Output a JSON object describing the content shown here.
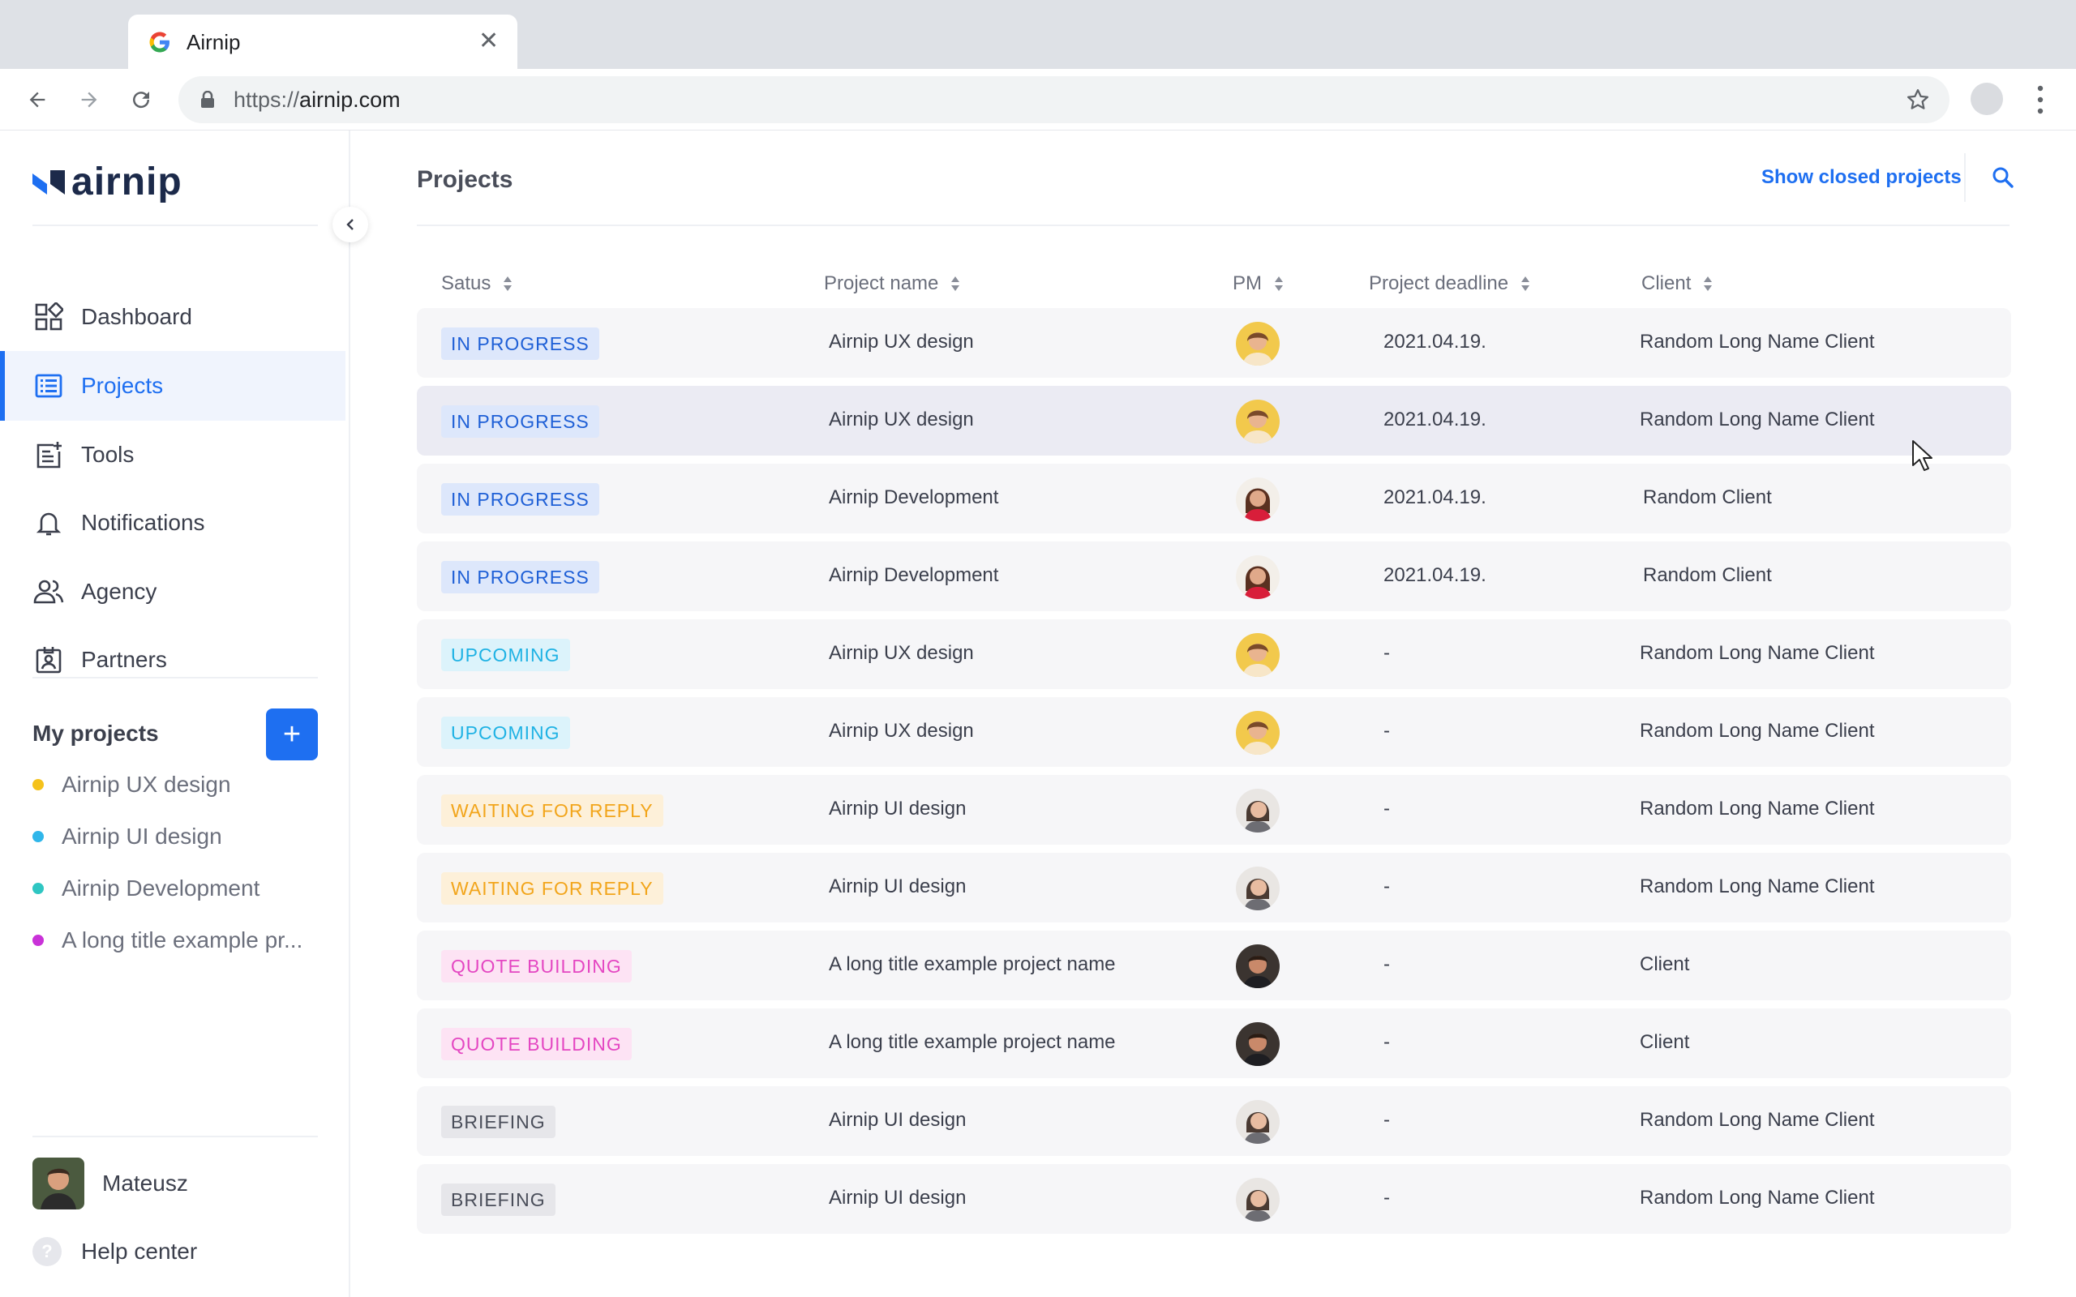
{
  "browser": {
    "tab_title": "Airnip",
    "url_proto": "https://",
    "url_host": "airnip.com"
  },
  "sidebar": {
    "logo_text": "airnip",
    "nav": [
      {
        "label": "Dashboard",
        "icon": "dashboard-icon",
        "active": false
      },
      {
        "label": "Projects",
        "icon": "list-icon",
        "active": true
      },
      {
        "label": "Tools",
        "icon": "tools-icon",
        "active": false
      },
      {
        "label": "Notifications",
        "icon": "bell-icon",
        "active": false
      },
      {
        "label": "Agency",
        "icon": "people-icon",
        "active": false
      },
      {
        "label": "Partners",
        "icon": "badge-icon",
        "active": false
      }
    ],
    "my_projects_title": "My projects",
    "add_label": "+",
    "my_projects": [
      {
        "label": "Airnip UX design",
        "color": "#f5c21b"
      },
      {
        "label": "Airnip UI design",
        "color": "#2fb6ea"
      },
      {
        "label": "Airnip Development",
        "color": "#2fc6c2"
      },
      {
        "label": "A long title example pr...",
        "color": "#c932d8"
      }
    ],
    "user_name": "Mateusz",
    "help_label": "Help center",
    "help_icon": "?"
  },
  "main": {
    "title": "Projects",
    "show_closed": "Show closed projects",
    "columns": [
      "Satus",
      "Project name",
      "PM",
      "Project deadline",
      "Client"
    ],
    "rows": [
      {
        "status": "IN PROGRESS",
        "status_key": "progress",
        "name": "Airnip UX design",
        "pm": "a",
        "deadline": "2021.04.19.",
        "client": "Random Long Name Client"
      },
      {
        "status": "IN PROGRESS",
        "status_key": "progress",
        "name": "Airnip UX design",
        "pm": "a",
        "deadline": "2021.04.19.",
        "client": "Random Long Name Client"
      },
      {
        "status": "IN PROGRESS",
        "status_key": "progress",
        "name": "Airnip Development",
        "pm": "b",
        "deadline": "2021.04.19.",
        "client": "Random Client"
      },
      {
        "status": "IN PROGRESS",
        "status_key": "progress",
        "name": "Airnip Development",
        "pm": "b",
        "deadline": "2021.04.19.",
        "client": "Random Client"
      },
      {
        "status": "UPCOMING",
        "status_key": "upcoming",
        "name": "Airnip UX design",
        "pm": "a",
        "deadline": "-",
        "client": "Random Long Name Client"
      },
      {
        "status": "UPCOMING",
        "status_key": "upcoming",
        "name": "Airnip UX design",
        "pm": "a",
        "deadline": "-",
        "client": "Random Long Name Client"
      },
      {
        "status": "WAITING FOR REPLY",
        "status_key": "waiting",
        "name": "Airnip UI design",
        "pm": "c",
        "deadline": "-",
        "client": "Random Long Name Client"
      },
      {
        "status": "WAITING FOR REPLY",
        "status_key": "waiting",
        "name": "Airnip UI design",
        "pm": "c",
        "deadline": "-",
        "client": "Random Long Name Client"
      },
      {
        "status": "QUOTE BUILDING",
        "status_key": "quote",
        "name": "A long title example project name",
        "pm": "d",
        "deadline": "-",
        "client": "Client"
      },
      {
        "status": "QUOTE BUILDING",
        "status_key": "quote",
        "name": "A long title example project name",
        "pm": "d",
        "deadline": "-",
        "client": "Client"
      },
      {
        "status": "BRIEFING",
        "status_key": "briefing",
        "name": "Airnip UI design",
        "pm": "c",
        "deadline": "-",
        "client": "Random Long Name Client"
      },
      {
        "status": "BRIEFING",
        "status_key": "briefing",
        "name": "Airnip UI design",
        "pm": "c",
        "deadline": "-",
        "client": "Random Long Name Client"
      }
    ]
  },
  "colors": {
    "accent": "#1e6ff1",
    "progress_bg": "#dde7fb",
    "progress_fg": "#1e5fd6",
    "upcoming_bg": "#dcf3fb",
    "upcoming_fg": "#1fb2e4",
    "waiting_bg": "#fdf0d9",
    "waiting_fg": "#f2a51b",
    "quote_bg": "#fde3f4",
    "quote_fg": "#e447c2",
    "briefing_bg": "#e6e6ea",
    "briefing_fg": "#4a4e5a"
  }
}
